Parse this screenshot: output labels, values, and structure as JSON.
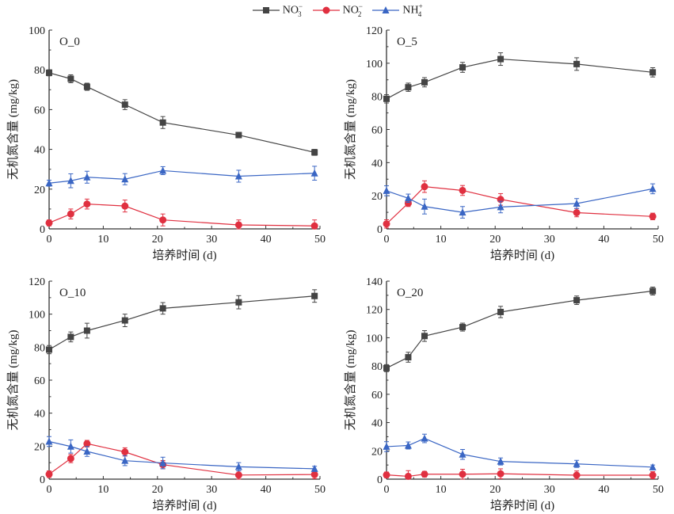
{
  "legend": [
    {
      "key": "no3",
      "label_main": "NO",
      "sub": "3",
      "sup": "−",
      "color": "#444444",
      "marker": "square"
    },
    {
      "key": "no2",
      "label_main": "NO",
      "sub": "2",
      "sup": "−",
      "color": "#e03040",
      "marker": "circle"
    },
    {
      "key": "nh4",
      "label_main": "NH",
      "sub": "4",
      "sup": "+",
      "color": "#3a66c4",
      "marker": "triangle"
    }
  ],
  "chart_data": [
    {
      "type": "line",
      "title": "O_0",
      "xlabel": "培养时间 (d)",
      "ylabel": "无机氮含量 (mg/kg)",
      "xlim": [
        0,
        50
      ],
      "ylim": [
        0,
        100
      ],
      "xticks": [
        0,
        10,
        20,
        30,
        40,
        50
      ],
      "yticks": [
        0,
        20,
        40,
        60,
        80,
        100
      ],
      "x": [
        0,
        4,
        7,
        14,
        21,
        35,
        49
      ],
      "series": [
        {
          "name": "NO3-",
          "key": "no3",
          "values": [
            78.5,
            75.5,
            71.5,
            62.5,
            53.5,
            47.2,
            38.5
          ],
          "errors": [
            1.5,
            2,
            1.8,
            2.5,
            3,
            1,
            1.5
          ]
        },
        {
          "name": "NO2-",
          "key": "no2",
          "values": [
            3,
            7.5,
            12.5,
            11.5,
            4.5,
            2,
            1.5
          ],
          "errors": [
            1.5,
            2.5,
            2.5,
            3,
            3,
            2.5,
            3
          ]
        },
        {
          "name": "NH4+",
          "key": "nh4",
          "values": [
            23,
            24.2,
            26,
            25,
            29.3,
            26.5,
            28
          ],
          "errors": [
            1.5,
            3.5,
            3,
            2.8,
            2,
            3,
            3.5
          ]
        }
      ]
    },
    {
      "type": "line",
      "title": "O_5",
      "xlabel": "培养时间 (d)",
      "ylabel": "无机氮含量 (mg/kg)",
      "xlim": [
        0,
        50
      ],
      "ylim": [
        0,
        120
      ],
      "xticks": [
        0,
        10,
        20,
        30,
        40,
        50
      ],
      "yticks": [
        0,
        20,
        40,
        60,
        80,
        100,
        120
      ],
      "x": [
        0,
        4,
        7,
        14,
        21,
        35,
        49
      ],
      "series": [
        {
          "name": "NO3-",
          "key": "no3",
          "values": [
            78.5,
            85.5,
            88.5,
            97.5,
            102.5,
            99.5,
            94.5
          ],
          "errors": [
            2.5,
            2.5,
            2.8,
            3,
            3.8,
            3.8,
            2.8
          ]
        },
        {
          "name": "NO2-",
          "key": "no2",
          "values": [
            3,
            15.5,
            25.5,
            23.2,
            17.8,
            9.8,
            7.5
          ],
          "errors": [
            2.5,
            2,
            3.5,
            3,
            3.5,
            2.5,
            2
          ]
        },
        {
          "name": "NH4+",
          "key": "nh4",
          "values": [
            23,
            18.5,
            13.5,
            10,
            13.2,
            15.3,
            24.2
          ],
          "errors": [
            3,
            2.5,
            4.5,
            3.5,
            3.5,
            3,
            3
          ]
        }
      ]
    },
    {
      "type": "line",
      "title": "O_10",
      "xlabel": "培养时间 (d)",
      "ylabel": "无机氮含量 (mg/kg)",
      "xlim": [
        0,
        50
      ],
      "ylim": [
        0,
        120
      ],
      "xticks": [
        0,
        10,
        20,
        30,
        40,
        50
      ],
      "yticks": [
        0,
        20,
        40,
        60,
        80,
        100,
        120
      ],
      "x": [
        0,
        4,
        7,
        14,
        21,
        35,
        49
      ],
      "series": [
        {
          "name": "NO3-",
          "key": "no3",
          "values": [
            78.5,
            86.2,
            90,
            96.2,
            103.5,
            107.2,
            111
          ],
          "errors": [
            2.5,
            3,
            4.5,
            3.8,
            3.5,
            4,
            3.8
          ]
        },
        {
          "name": "NO2-",
          "key": "no2",
          "values": [
            3,
            12.5,
            21.5,
            16.5,
            8.8,
            2.5,
            2.8
          ],
          "errors": [
            2,
            2.5,
            2,
            2.5,
            2.5,
            2.5,
            2.5
          ]
        },
        {
          "name": "NH4+",
          "key": "nh4",
          "values": [
            22.8,
            19.8,
            16.8,
            11.2,
            9.8,
            7.5,
            6.3
          ],
          "errors": [
            3,
            4,
            3,
            3,
            3.5,
            2.5,
            1.5
          ]
        }
      ]
    },
    {
      "type": "line",
      "title": "O_20",
      "xlabel": "培养时间 (d)",
      "ylabel": "无机氮含量 (mg/kg)",
      "xlim": [
        0,
        50
      ],
      "ylim": [
        0,
        140
      ],
      "xticks": [
        0,
        10,
        20,
        30,
        40,
        50
      ],
      "yticks": [
        0,
        20,
        40,
        60,
        80,
        100,
        120,
        140
      ],
      "x": [
        0,
        4,
        7,
        14,
        21,
        35,
        49
      ],
      "series": [
        {
          "name": "NO3-",
          "key": "no3",
          "values": [
            78.5,
            86.2,
            101.2,
            107.5,
            118.2,
            126.5,
            133
          ],
          "errors": [
            2.5,
            3.5,
            3.8,
            2.8,
            4,
            3,
            2.8
          ]
        },
        {
          "name": "NO2-",
          "key": "no2",
          "values": [
            3,
            2,
            3.5,
            3.5,
            3.8,
            2.8,
            2.8
          ],
          "errors": [
            2,
            4,
            2,
            3.5,
            3.5,
            3,
            2.5
          ]
        },
        {
          "name": "NH4+",
          "key": "nh4",
          "values": [
            23,
            23.8,
            28.8,
            17.5,
            12.5,
            10.8,
            8.5
          ],
          "errors": [
            3.5,
            2.5,
            3,
            3.5,
            2.5,
            2.5,
            1.5
          ]
        }
      ]
    }
  ]
}
